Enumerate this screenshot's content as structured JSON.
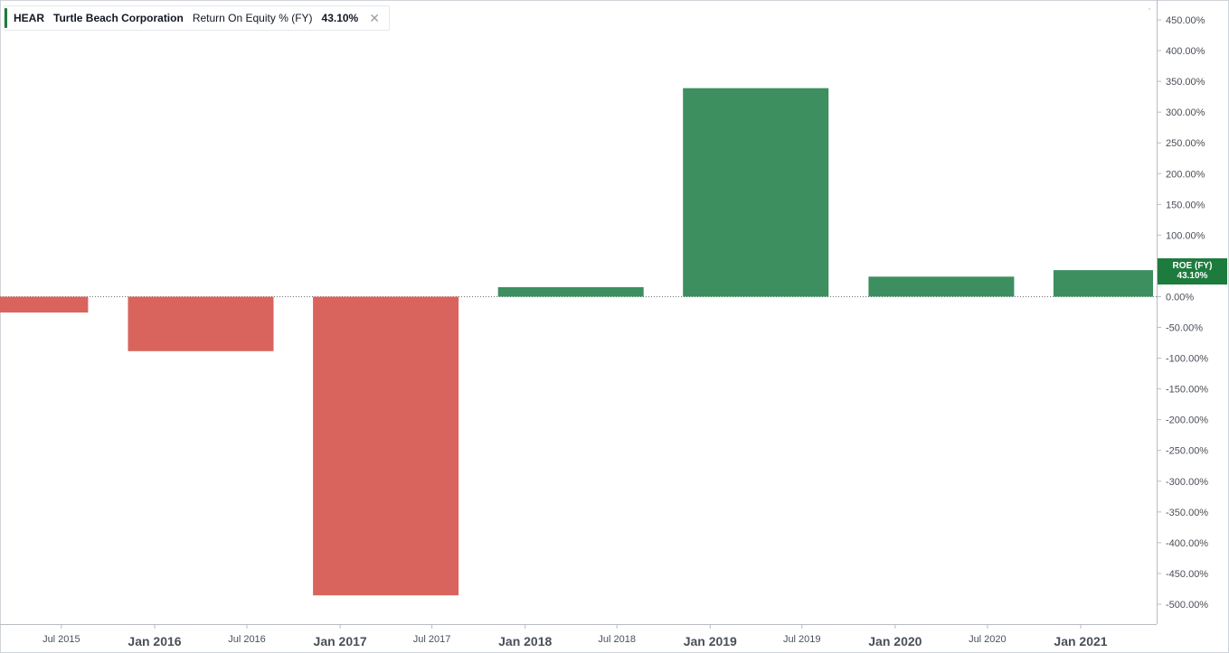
{
  "legend": {
    "ticker": "HEAR",
    "company": "Turtle Beach Corporation",
    "metric": "Return On Equity % (FY)",
    "value": "43.10%",
    "close_icon": "close-icon"
  },
  "price_tag": {
    "label": "ROE (FY)",
    "value": "43.10%"
  },
  "colors": {
    "positive": "#3d8f60",
    "negative": "#d9645d",
    "accent": "#1e7b3e"
  },
  "chart_data": {
    "type": "bar",
    "x": [
      "2015-04-01",
      "2016-04-01",
      "2017-04-01",
      "2018-04-01",
      "2019-04-01",
      "2020-04-01",
      "2021-04-01"
    ],
    "values": [
      -25.7,
      -88.5,
      -485.5,
      15.5,
      339.0,
      32.5,
      43.1
    ],
    "ylim": [
      -520,
      460
    ],
    "yticks": [
      450,
      400,
      350,
      300,
      250,
      200,
      150,
      100,
      50,
      0,
      -50,
      -100,
      -150,
      -200,
      -250,
      -300,
      -350,
      -400,
      -450,
      -500
    ],
    "ytick_labels": [
      "450.00%",
      "400.00%",
      "350.00%",
      "300.00%",
      "250.00%",
      "200.00%",
      "150.00%",
      "100.00%",
      "50.00%",
      "0.00%",
      "-50.00%",
      "-100.00%",
      "-150.00%",
      "-200.00%",
      "-250.00%",
      "-300.00%",
      "-350.00%",
      "-400.00%",
      "-450.00%",
      "-500.00%"
    ],
    "xticks": [
      {
        "date": "2015-07-01",
        "label": "Jul 2015",
        "major": false
      },
      {
        "date": "2016-01-01",
        "label": "Jan 2016",
        "major": true
      },
      {
        "date": "2016-07-01",
        "label": "Jul 2016",
        "major": false
      },
      {
        "date": "2017-01-01",
        "label": "Jan 2017",
        "major": true
      },
      {
        "date": "2017-07-01",
        "label": "Jul 2017",
        "major": false
      },
      {
        "date": "2018-01-01",
        "label": "Jan 2018",
        "major": true
      },
      {
        "date": "2018-07-01",
        "label": "Jul 2018",
        "major": false
      },
      {
        "date": "2019-01-01",
        "label": "Jan 2019",
        "major": true
      },
      {
        "date": "2019-07-01",
        "label": "Jul 2019",
        "major": false
      },
      {
        "date": "2020-01-01",
        "label": "Jan 2020",
        "major": true
      },
      {
        "date": "2020-07-01",
        "label": "Jul 2020",
        "major": false
      },
      {
        "date": "2021-01-01",
        "label": "Jan 2021",
        "major": true
      }
    ],
    "grid": false,
    "zero_line": "dotted"
  }
}
